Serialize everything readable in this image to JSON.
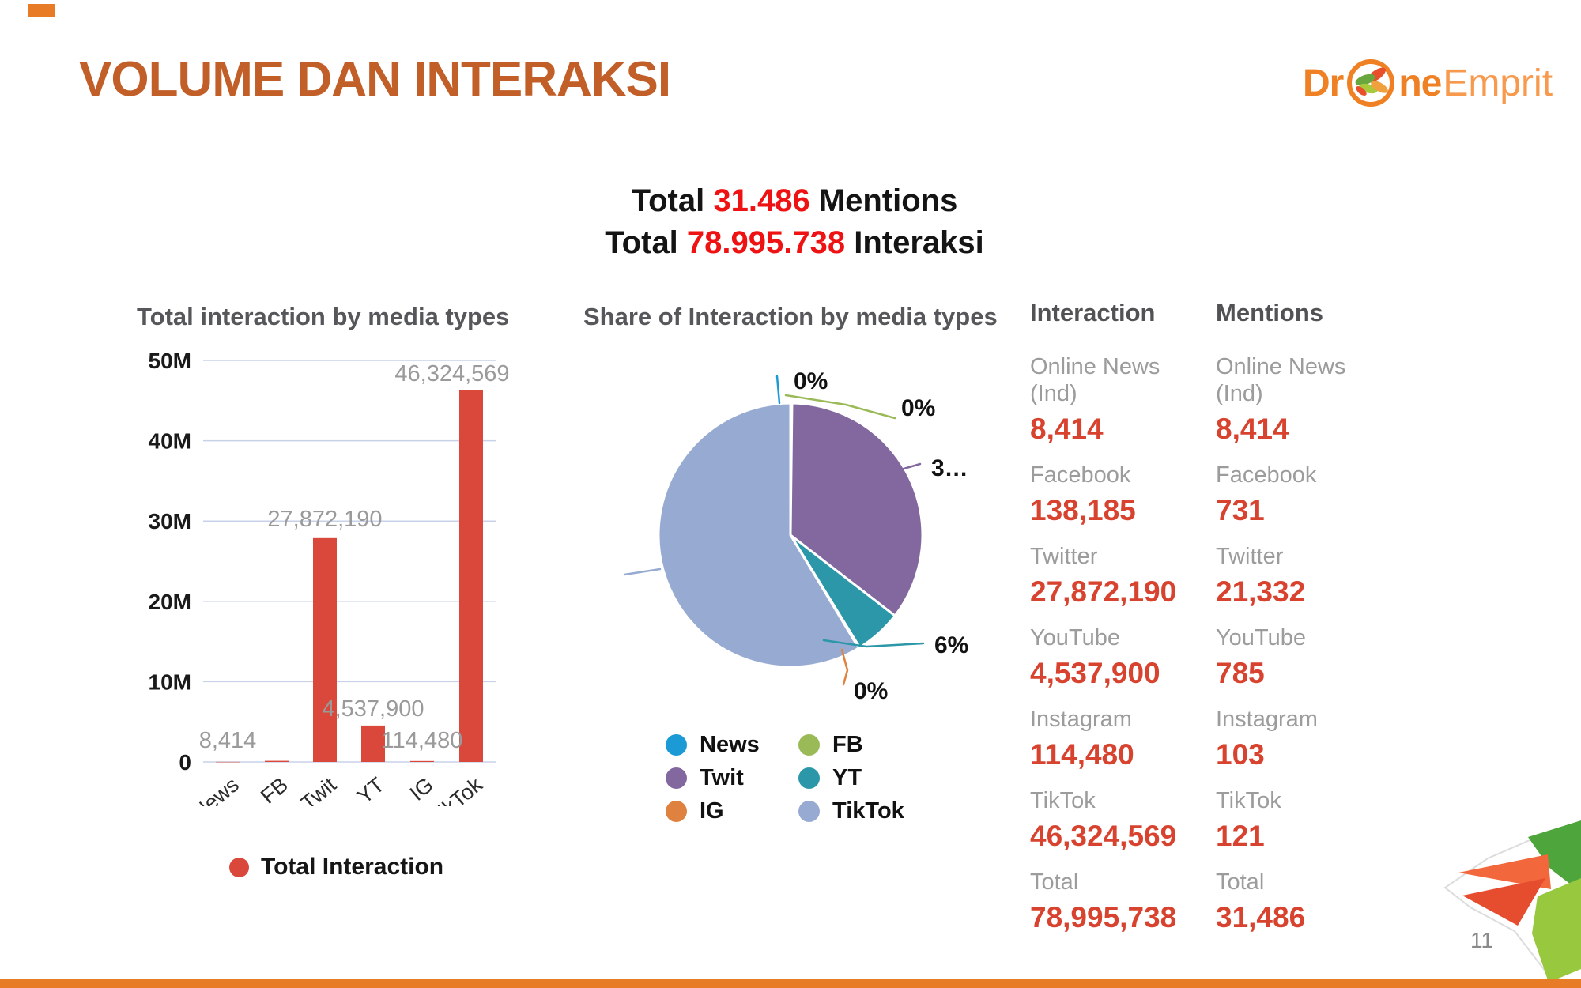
{
  "page": {
    "title": "VOLUME DAN INTERAKSI",
    "page_number": "11"
  },
  "logo": {
    "prefix": "Dr",
    "mid": "ne",
    "suffix": "Emprit"
  },
  "summary": {
    "line1": {
      "prefix": "Total ",
      "value": "31.486",
      "suffix": " Mentions"
    },
    "line2": {
      "prefix": "Total ",
      "value": "78.995.738",
      "suffix": " Interaksi"
    }
  },
  "colors": {
    "title_orange": "#c25f28",
    "summary_red": "#ee1212",
    "bar_red": "#d9483b",
    "value_red": "#d8432f",
    "stripe_orange": "#e87c26",
    "gridline": "#c7d2e8"
  },
  "chart_data": [
    {
      "type": "bar",
      "title": "Total interaction by media types",
      "categories": [
        "News",
        "FB",
        "Twit",
        "YT",
        "IG",
        "TikTok"
      ],
      "values": [
        8414,
        138185,
        27872190,
        4537900,
        114480,
        46324569
      ],
      "value_labels": [
        "8,414",
        "",
        "27,872,190",
        "4,537,900",
        "114,480",
        "46,324,569"
      ],
      "yticks": [
        "0",
        "10M",
        "20M",
        "30M",
        "40M",
        "50M"
      ],
      "ylim": [
        0,
        50000000
      ],
      "grid": "on",
      "legend": "Total Interaction",
      "legend_position": "bottom",
      "bar_color": "#d9483b"
    },
    {
      "type": "pie",
      "title": "Share of Interaction by media types",
      "slices": [
        {
          "label": "News",
          "value": 8414,
          "pct_label": "0%",
          "color": "#1b9ad6"
        },
        {
          "label": "FB",
          "value": 138185,
          "pct_label": "0%",
          "color": "#9aba58"
        },
        {
          "label": "Twit",
          "value": 27872190,
          "pct_label": "3…",
          "color": "#82689f"
        },
        {
          "label": "YT",
          "value": 4537900,
          "pct_label": "6%",
          "color": "#2b97a8"
        },
        {
          "label": "IG",
          "value": 114480,
          "pct_label": "0%",
          "color": "#e0823f"
        },
        {
          "label": "TikTok",
          "value": 46324569,
          "pct_label": "",
          "color": "#97aad2"
        }
      ],
      "legend_position": "bottom"
    }
  ],
  "stats": {
    "columns": [
      {
        "header": "Interaction",
        "rows": [
          {
            "label": "Online News (Ind)",
            "value": "8,414"
          },
          {
            "label": "Facebook",
            "value": "138,185"
          },
          {
            "label": "Twitter",
            "value": "27,872,190"
          },
          {
            "label": "YouTube",
            "value": "4,537,900"
          },
          {
            "label": "Instagram",
            "value": "114,480"
          },
          {
            "label": "TikTok",
            "value": "46,324,569"
          },
          {
            "label": "Total",
            "value": "78,995,738"
          }
        ]
      },
      {
        "header": "Mentions",
        "rows": [
          {
            "label": "Online News (Ind)",
            "value": "8,414"
          },
          {
            "label": "Facebook",
            "value": "731"
          },
          {
            "label": "Twitter",
            "value": "21,332"
          },
          {
            "label": "YouTube",
            "value": "785"
          },
          {
            "label": "Instagram",
            "value": "103"
          },
          {
            "label": "TikTok",
            "value": "121"
          },
          {
            "label": "Total",
            "value": "31,486"
          }
        ]
      }
    ]
  }
}
